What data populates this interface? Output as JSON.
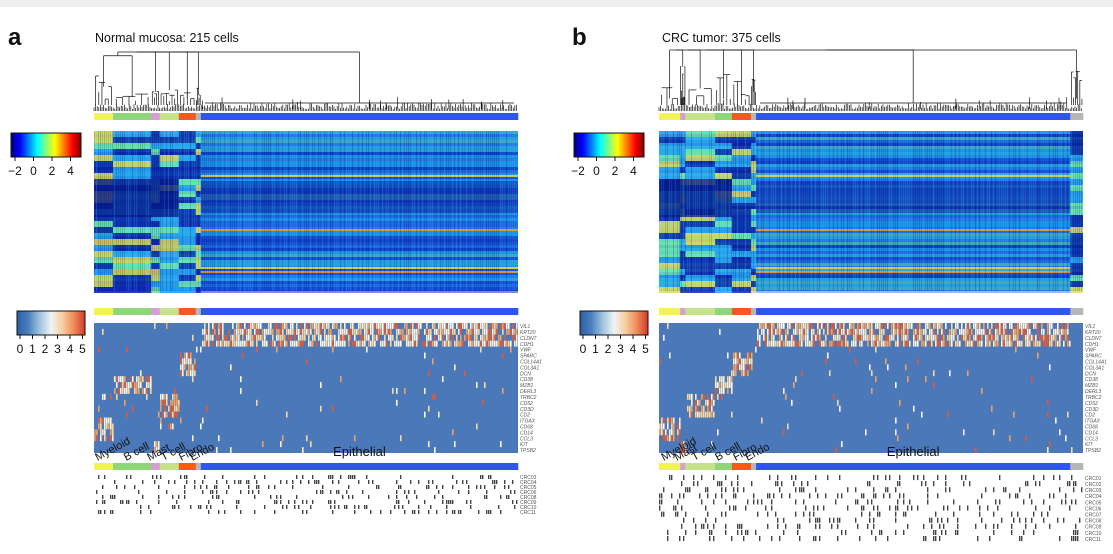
{
  "header": {
    "bar_color": "#eeeeee"
  },
  "panels": [
    {
      "id": "a",
      "letter": "a",
      "title": "Normal mucosa: 215 cells",
      "scale1_ticks": [
        "−2",
        "0",
        "2",
        "4"
      ],
      "scale2_ticks": [
        "0",
        "1",
        "2",
        "3",
        "4",
        "5"
      ],
      "segments": [
        {
          "name": "Myeloid",
          "frac": 0.045,
          "color": "#f2f25a"
        },
        {
          "name": "B cell",
          "frac": 0.09,
          "color": "#8fd67a"
        },
        {
          "name": "Mast",
          "frac": 0.02,
          "color": "#d59fd6"
        },
        {
          "name": "T cell",
          "frac": 0.045,
          "color": "#c6e38a"
        },
        {
          "name": "Fibro",
          "frac": 0.04,
          "color": "#f25a1e"
        },
        {
          "name": "Endo",
          "frac": 0.012,
          "color": "#b6b6b6"
        },
        {
          "name": "Epithelial",
          "frac": 0.748,
          "color": "#2f56e8"
        }
      ],
      "genes": [
        "VIL1",
        "KRT20",
        "CLDN7",
        "CDH1",
        "VWF",
        "SPARC",
        "COL14A1",
        "COL3A1",
        "DCN",
        "CD38",
        "MZB1",
        "DERL3",
        "TRBC2",
        "CD52",
        "CD3D",
        "CD2",
        "ITGAX",
        "CD68",
        "CD14",
        "CCL3",
        "KIT",
        "TPSB2"
      ],
      "samples": [
        "CRC03",
        "CRC04",
        "CRC05",
        "CRC06",
        "CRC08",
        "CRC09",
        "CRC10",
        "CRC11"
      ]
    },
    {
      "id": "b",
      "letter": "b",
      "title": "CRC tumor: 375 cells",
      "scale1_ticks": [
        "−2",
        "0",
        "2",
        "4"
      ],
      "scale2_ticks": [
        "0",
        "1",
        "2",
        "3",
        "4",
        "5"
      ],
      "segments": [
        {
          "name": "Myeloid",
          "frac": 0.05,
          "color": "#f2f25a"
        },
        {
          "name": "Mast",
          "frac": 0.012,
          "color": "#d59fd6"
        },
        {
          "name": "T cell",
          "frac": 0.07,
          "color": "#c6e38a"
        },
        {
          "name": "B cell",
          "frac": 0.04,
          "color": "#8fd67a"
        },
        {
          "name": "Fibro",
          "frac": 0.045,
          "color": "#f25a1e"
        },
        {
          "name": "Endo",
          "frac": 0.012,
          "color": "#b6b6b6"
        },
        {
          "name": "Epithelial",
          "frac": 0.741,
          "color": "#2f56e8"
        },
        {
          "name": "",
          "frac": 0.03,
          "color": "#b6b6b6"
        }
      ],
      "genes": [
        "VIL1",
        "KRT20",
        "CLDN7",
        "CDH1",
        "VWF",
        "SPARC",
        "COL14A1",
        "COL3A1",
        "DCN",
        "CD38",
        "MZB1",
        "DERL3",
        "TRBC2",
        "CD52",
        "CD3D",
        "CD2",
        "ITGAX",
        "CD68",
        "CD14",
        "CCL3",
        "KIT",
        "TPSB2"
      ],
      "samples": [
        "CRC01",
        "CRC02",
        "CRC03",
        "CRC04",
        "CRC05",
        "CRC06",
        "CRC07",
        "CRC08",
        "CRC09",
        "CRC10",
        "CRC11"
      ]
    }
  ]
}
